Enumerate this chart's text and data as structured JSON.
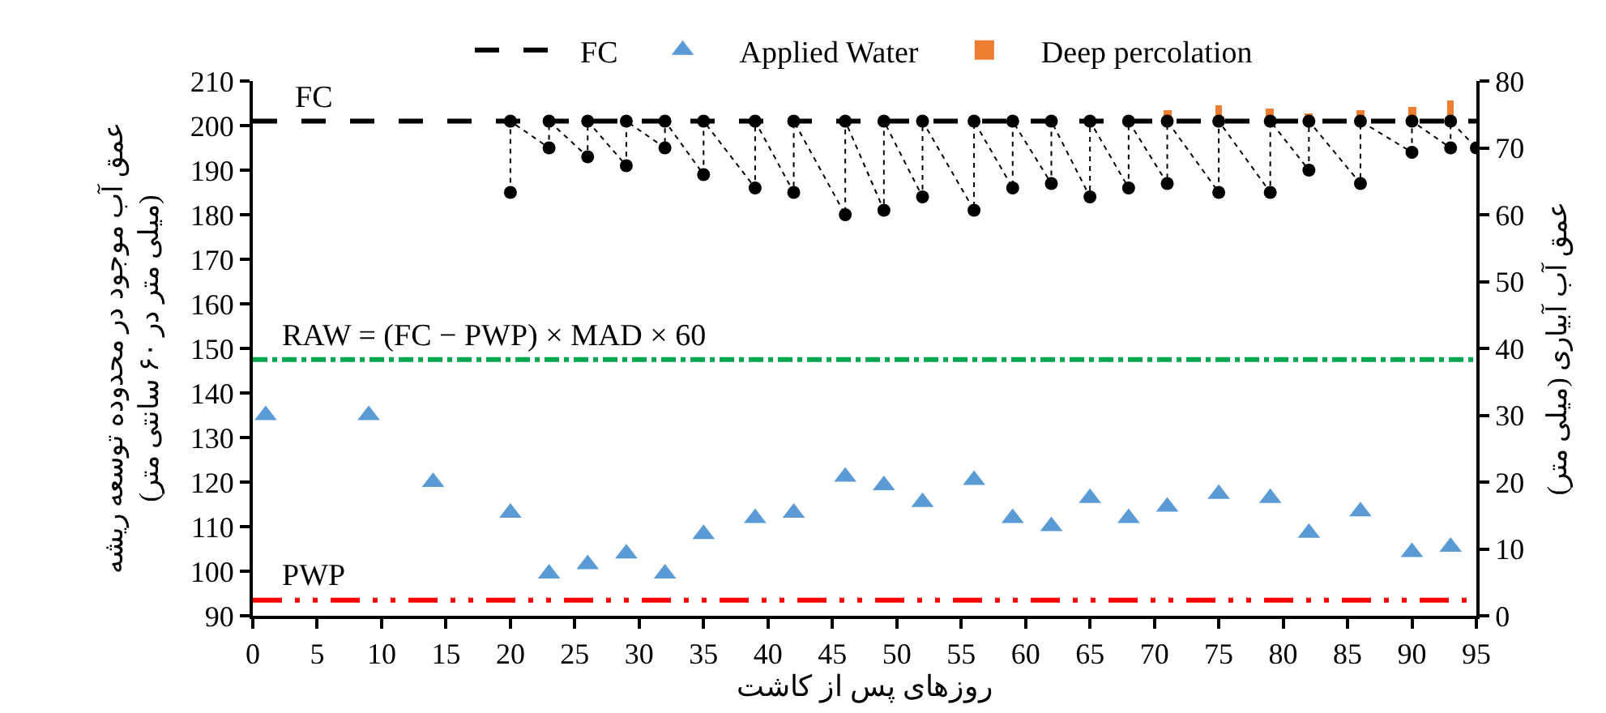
{
  "chart_data": {
    "type": "line",
    "xlabel": "روزهای پس از کاشت",
    "ylabel": "عمق آب موجود در محدوده توسعه ریشه\n(میلی متر در ۶۰ سانتی متر)",
    "y2label": "عمق آب آبیاری (میلی متر)",
    "xlim": [
      0,
      95
    ],
    "xticks": [
      0,
      5,
      10,
      15,
      20,
      25,
      30,
      35,
      40,
      45,
      50,
      55,
      60,
      65,
      70,
      75,
      80,
      85,
      90,
      95
    ],
    "ylim": [
      90,
      210
    ],
    "yticks": [
      90,
      100,
      110,
      120,
      130,
      140,
      150,
      160,
      170,
      180,
      190,
      200,
      210
    ],
    "y2lim": [
      0,
      80
    ],
    "y2ticks": [
      0,
      10,
      20,
      30,
      40,
      50,
      60,
      70,
      80
    ],
    "legend": "top",
    "series": [
      {
        "name": "FC",
        "color": "#000000",
        "line_style": "dashed",
        "marker": "none",
        "x": [
          0,
          95
        ],
        "values": [
          201,
          201
        ]
      },
      {
        "name": "Applied Water",
        "type": "scatter",
        "axis": "y2",
        "color": "#5b9bd5",
        "marker": "triangle",
        "x": [
          1,
          9,
          14,
          20,
          23,
          26,
          29,
          32,
          35,
          39,
          42,
          46,
          49,
          52,
          56,
          59,
          62,
          65,
          68,
          71,
          75,
          79,
          82,
          86,
          90,
          93
        ],
        "values": [
          30,
          30,
          20,
          15.4,
          6.3,
          7.7,
          9.3,
          6.3,
          12.2,
          14.6,
          15.4,
          20.8,
          19.5,
          17,
          20.3,
          14.6,
          13.4,
          17.6,
          14.6,
          16.3,
          18.2,
          17.6,
          12.4,
          15.6,
          9.5,
          10.3
        ]
      },
      {
        "name": "Deep percolation",
        "type": "bar",
        "color": "#ed7d31",
        "x": [
          71,
          75,
          79,
          82,
          86,
          90,
          93
        ],
        "base": [
          201,
          201,
          201,
          201,
          201,
          201,
          201
        ],
        "values": [
          2.6,
          3.4,
          3,
          1.8,
          2.3,
          3.2,
          4.7
        ]
      },
      {
        "color": "#000000",
        "line_style": "dotted",
        "marker": "circle",
        "x": [
          20,
          20,
          23,
          23,
          26,
          26,
          29,
          29,
          32,
          32,
          35,
          35,
          39,
          39,
          42,
          42,
          46,
          46,
          49,
          49,
          52,
          52,
          56,
          56,
          59,
          59,
          62,
          62,
          65,
          65,
          68,
          68,
          71,
          71,
          75,
          75,
          79,
          79,
          82,
          82,
          86,
          86,
          90,
          90,
          93,
          93,
          95
        ],
        "values": [
          185,
          201,
          195,
          201,
          193,
          201,
          191,
          201,
          195,
          201,
          189,
          201,
          186,
          201,
          185,
          201,
          180,
          201,
          181,
          201,
          184,
          201,
          181,
          201,
          186,
          201,
          187,
          201,
          184,
          201,
          186,
          201,
          187,
          201,
          185,
          201,
          185,
          201,
          190,
          201,
          187,
          201,
          194,
          201,
          195,
          201,
          195
        ]
      }
    ],
    "ref_lines": [
      {
        "axis": "y",
        "value": 147.5,
        "label": "RAW = (FC − PWP) × MAD × 60",
        "color": "#00a650",
        "line_style": "dashdot"
      },
      {
        "axis": "y",
        "value": 93.5,
        "label": "PWP",
        "color": "#ff0000",
        "line_style": "dashdotdot"
      }
    ],
    "annotations": [
      {
        "text": "FC",
        "x": 3,
        "y": 201
      }
    ]
  }
}
